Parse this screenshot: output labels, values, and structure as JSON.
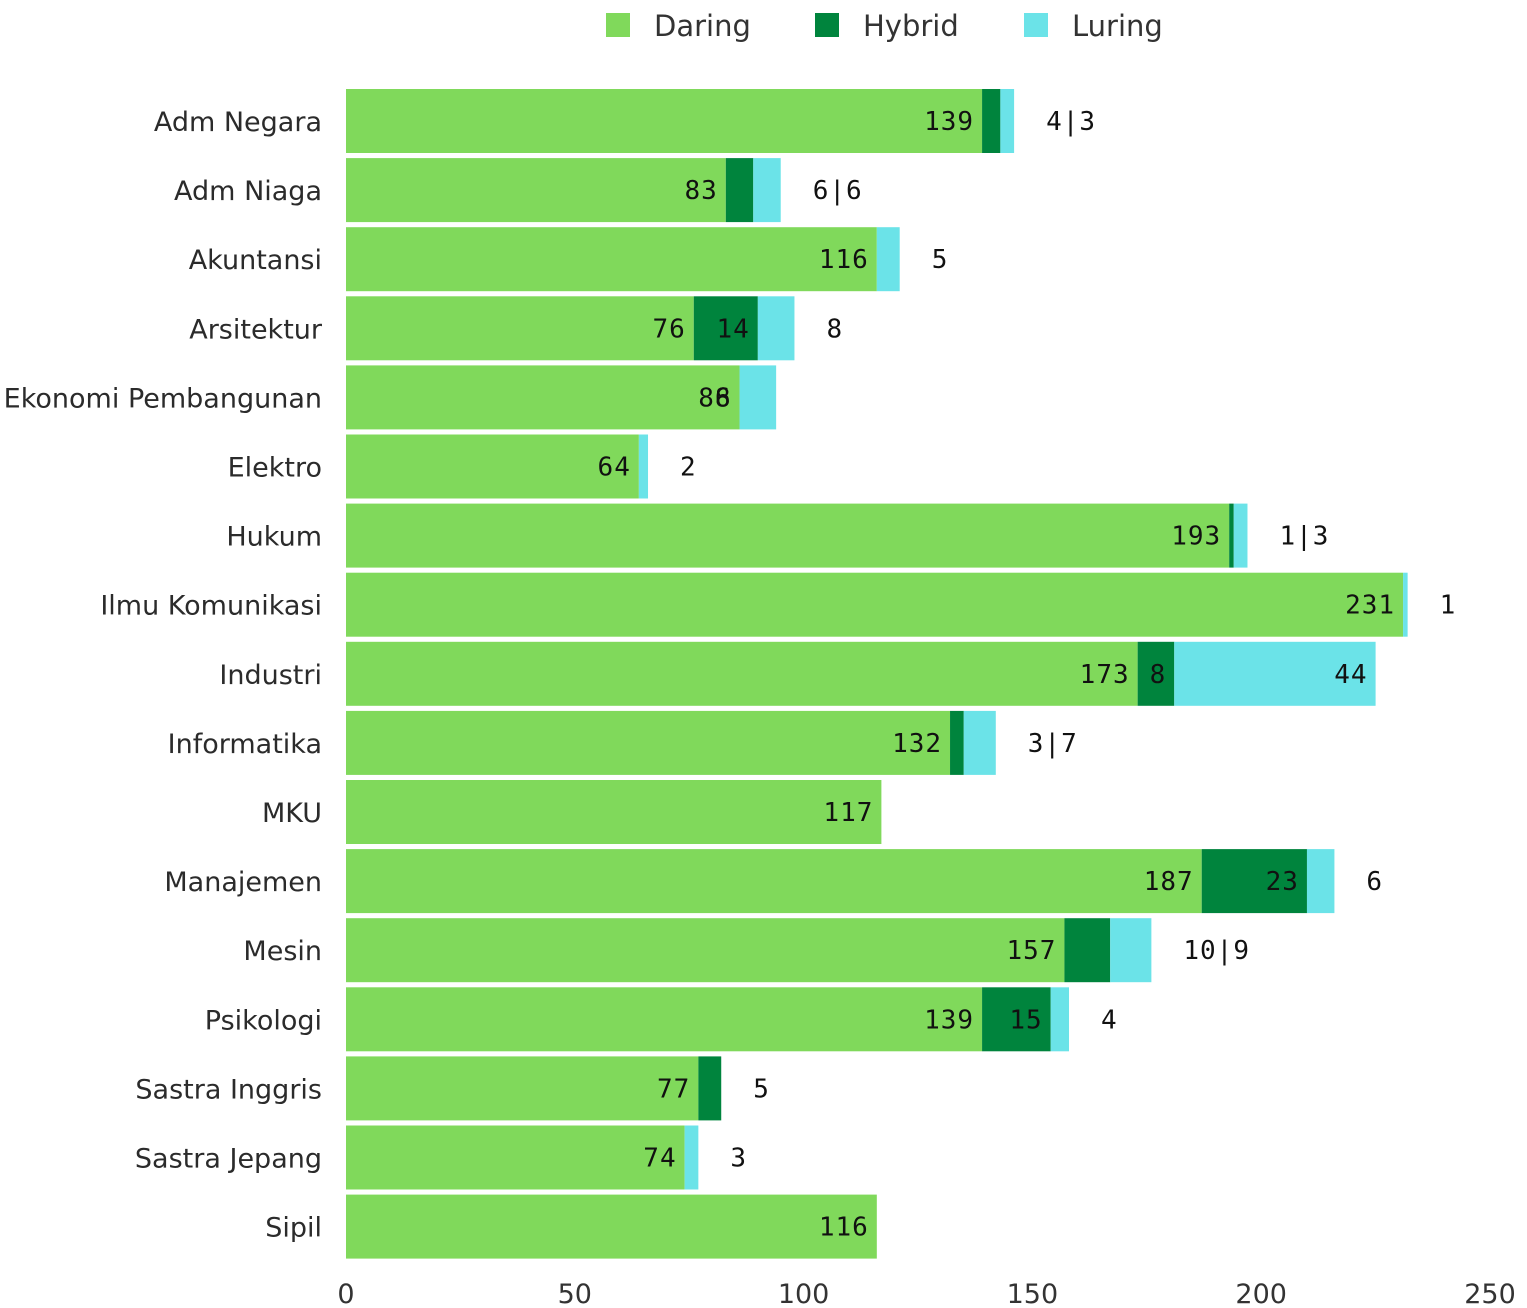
{
  "chart_data": {
    "type": "bar",
    "orientation": "horizontal",
    "stacked": true,
    "categories": [
      "Adm Negara",
      "Adm Niaga",
      "Akuntansi",
      "Arsitektur",
      "Ekonomi Pembangunan",
      "Elektro",
      "Hukum",
      "Ilmu Komunikasi",
      "Industri",
      "Informatika",
      "MKU",
      "Manajemen",
      "Mesin",
      "Psikologi",
      "Sastra Inggris",
      "Sastra Jepang",
      "Sipil"
    ],
    "series": [
      {
        "name": "Daring",
        "color": "#80d95b",
        "values": [
          139,
          83,
          116,
          76,
          86,
          64,
          193,
          231,
          173,
          132,
          117,
          187,
          157,
          139,
          77,
          74,
          116
        ]
      },
      {
        "name": "Hybrid",
        "color": "#00843d",
        "values": [
          4,
          6,
          0,
          14,
          0,
          0,
          1,
          0,
          8,
          3,
          0,
          23,
          10,
          15,
          5,
          0,
          0
        ]
      },
      {
        "name": "Luring",
        "color": "#6be3e8",
        "values": [
          3,
          6,
          5,
          8,
          8,
          2,
          3,
          1,
          44,
          7,
          0,
          6,
          9,
          4,
          0,
          3,
          0
        ]
      }
    ],
    "bar_labels": [
      {
        "inside": [
          "139"
        ],
        "outside": "4|3"
      },
      {
        "inside": [
          "83"
        ],
        "outside": "6|6"
      },
      {
        "inside": [
          "116"
        ],
        "outside": "5"
      },
      {
        "inside": [
          "76",
          "14"
        ],
        "outside": "8"
      },
      {
        "inside": [
          "86",
          "8"
        ],
        "outside": ""
      },
      {
        "inside": [
          "64"
        ],
        "outside": "2"
      },
      {
        "inside": [
          "193"
        ],
        "outside": "1|3"
      },
      {
        "inside": [
          "231"
        ],
        "outside": "1"
      },
      {
        "inside": [
          "173",
          "8",
          "44"
        ],
        "outside": ""
      },
      {
        "inside": [
          "132"
        ],
        "outside": "3|7"
      },
      {
        "inside": [
          "117"
        ],
        "outside": ""
      },
      {
        "inside": [
          "187",
          "23"
        ],
        "outside": "6"
      },
      {
        "inside": [
          "157"
        ],
        "outside": "10|9"
      },
      {
        "inside": [
          "139",
          "15"
        ],
        "outside": "4"
      },
      {
        "inside": [
          "77"
        ],
        "outside": "5"
      },
      {
        "inside": [
          "74"
        ],
        "outside": "3"
      },
      {
        "inside": [
          "116"
        ],
        "outside": ""
      }
    ],
    "x_ticks": [
      "0",
      "50",
      "100",
      "150",
      "200",
      "250"
    ],
    "xlim": [
      0,
      250
    ],
    "title": "",
    "xlabel": "",
    "ylabel": "",
    "grid": false,
    "legend_position": "top-center"
  }
}
